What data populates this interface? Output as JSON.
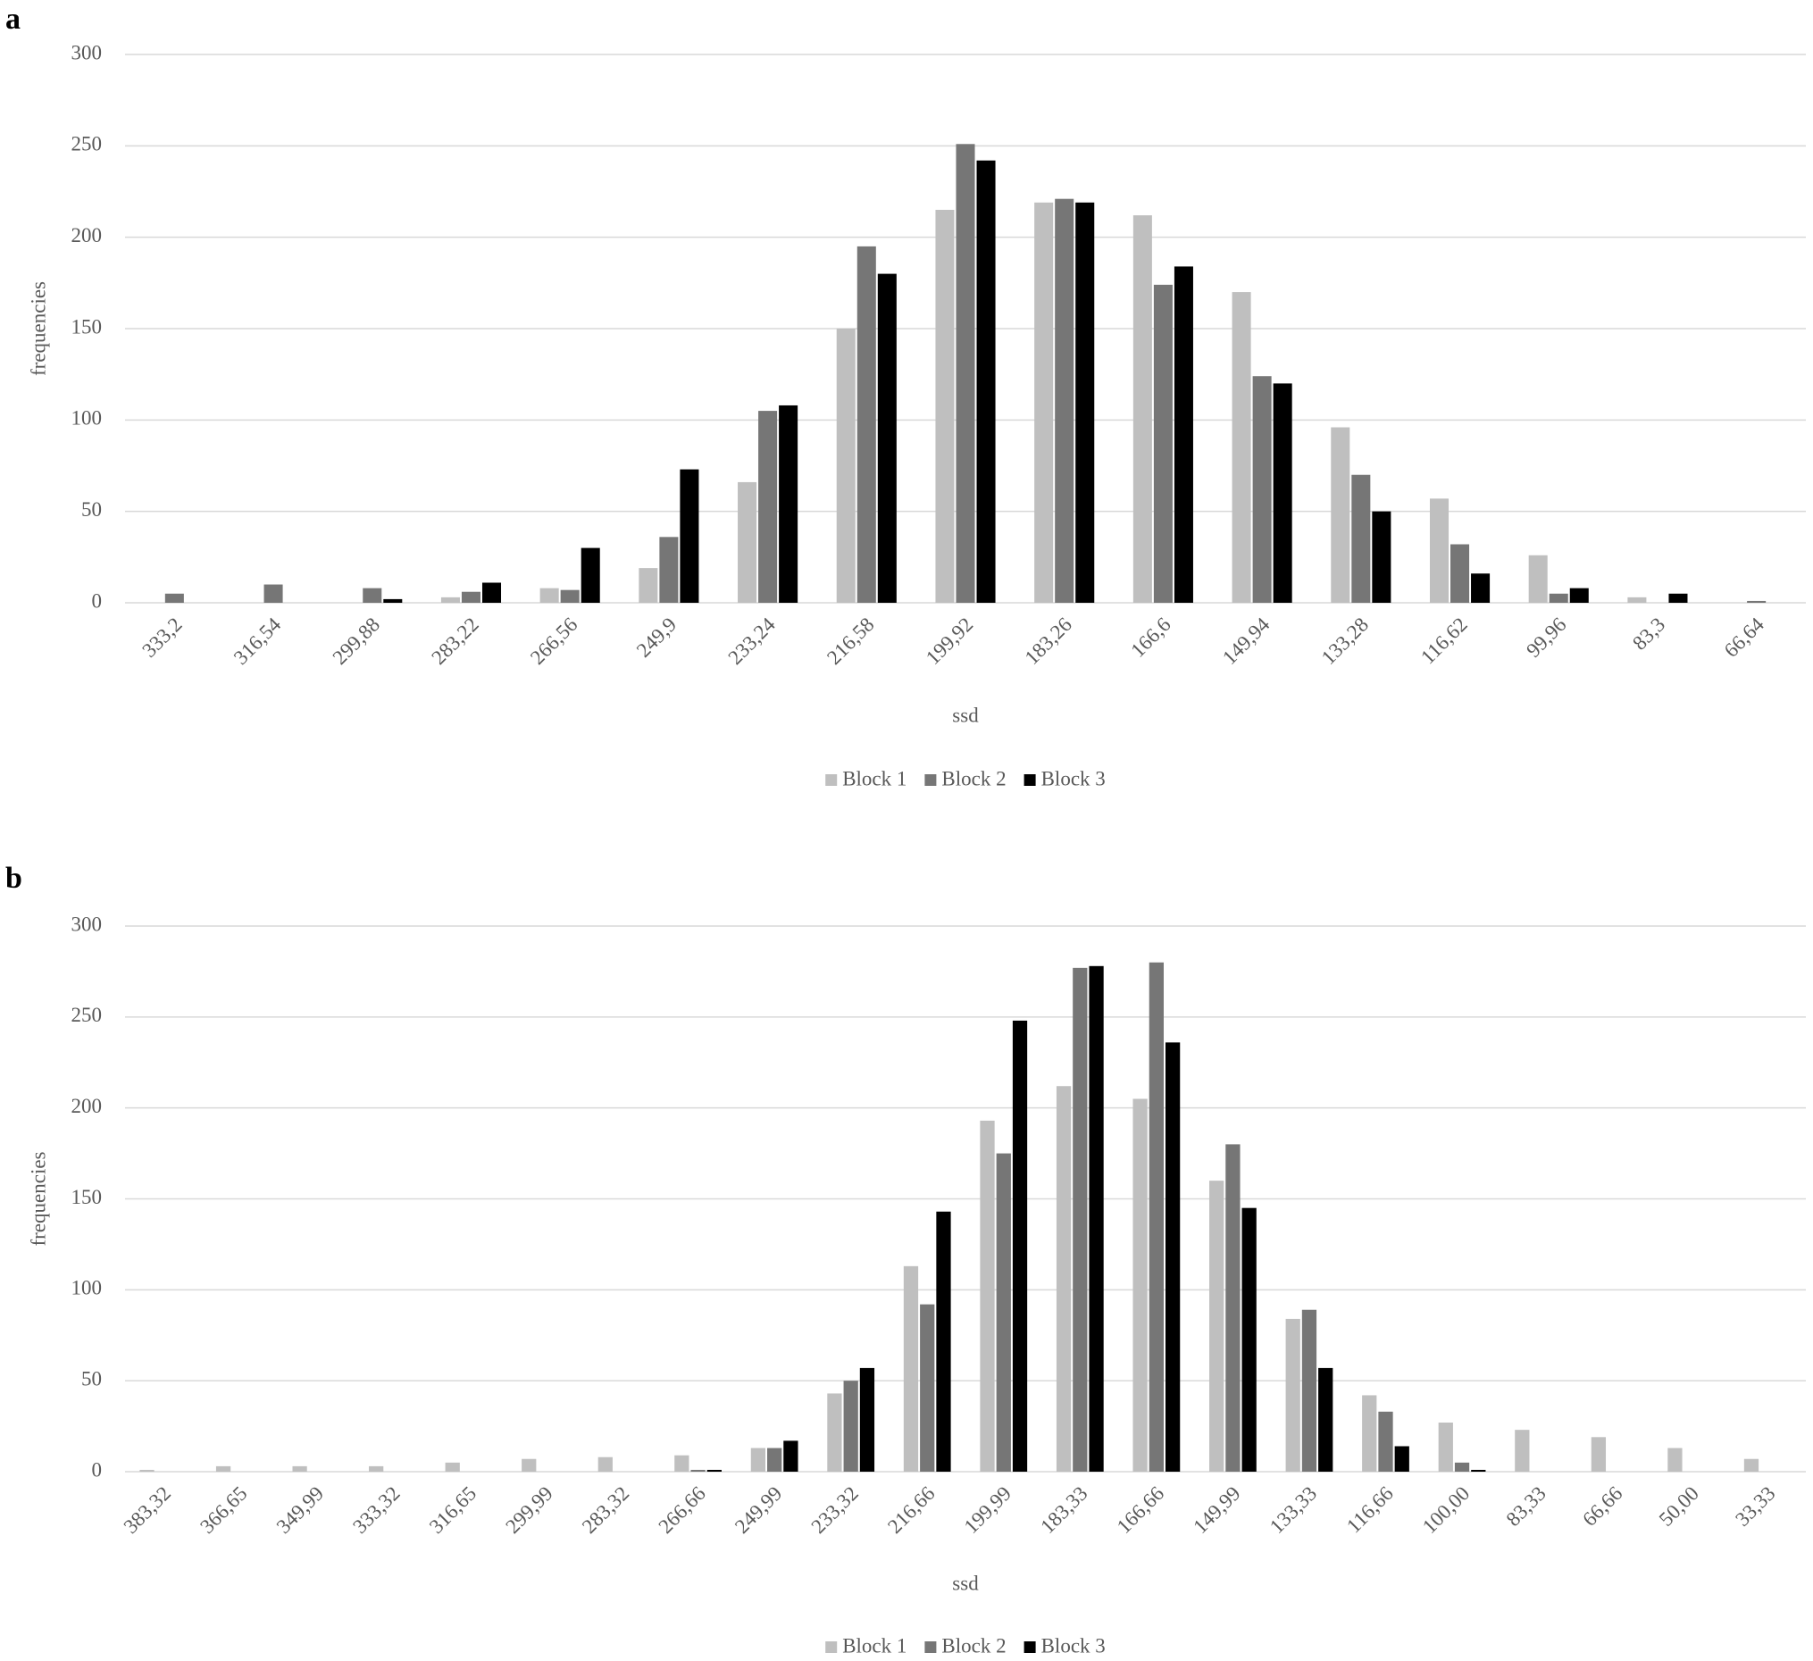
{
  "chart_data": [
    {
      "type": "bar",
      "panel_label": "a",
      "x_label": "ssd",
      "y_label": "frequencies",
      "categories": [
        "333,2",
        "316,54",
        "299,88",
        "283,22",
        "266,56",
        "249,9",
        "233,24",
        "216,58",
        "199,92",
        "183,26",
        "166,6",
        "149,94",
        "133,28",
        "116,62",
        "99,96",
        "83,3",
        "66,64"
      ],
      "series": [
        {
          "name": "Block 1",
          "color": "#bfbfbf",
          "values": [
            0,
            0,
            0,
            3,
            8,
            19,
            66,
            150,
            215,
            219,
            212,
            170,
            96,
            57,
            26,
            3,
            0
          ]
        },
        {
          "name": "Block 2",
          "color": "#767676",
          "values": [
            5,
            10,
            8,
            6,
            7,
            36,
            105,
            195,
            251,
            221,
            174,
            124,
            70,
            32,
            5,
            0,
            1
          ]
        },
        {
          "name": "Block 3",
          "color": "#000000",
          "values": [
            0,
            0,
            2,
            11,
            30,
            73,
            108,
            180,
            242,
            219,
            184,
            120,
            50,
            16,
            8,
            5,
            0
          ]
        }
      ],
      "ylim": [
        0,
        300
      ],
      "yticks": [
        0,
        50,
        100,
        150,
        200,
        250,
        300
      ],
      "grid": true,
      "legend": "bottom"
    },
    {
      "type": "bar",
      "panel_label": "b",
      "x_label": "ssd",
      "y_label": "frequencies",
      "categories": [
        "383,32",
        "366,65",
        "349,99",
        "333,32",
        "316,65",
        "299,99",
        "283,32",
        "266,66",
        "249,99",
        "233,32",
        "216,66",
        "199,99",
        "183,33",
        "166,66",
        "149,99",
        "133,33",
        "116,66",
        "100,00",
        "83,33",
        "66,66",
        "50,00",
        "33,33"
      ],
      "series": [
        {
          "name": "Block 1",
          "color": "#bfbfbf",
          "values": [
            1,
            3,
            3,
            3,
            5,
            7,
            8,
            9,
            13,
            43,
            113,
            193,
            212,
            205,
            160,
            84,
            42,
            27,
            23,
            19,
            13,
            7
          ]
        },
        {
          "name": "Block 2",
          "color": "#767676",
          "values": [
            0,
            0,
            0,
            0,
            0,
            0,
            0,
            1,
            13,
            50,
            92,
            175,
            277,
            280,
            180,
            89,
            33,
            5,
            0,
            0,
            0,
            0
          ]
        },
        {
          "name": "Block 3",
          "color": "#000000",
          "values": [
            0,
            0,
            0,
            0,
            0,
            0,
            0,
            1,
            17,
            57,
            143,
            248,
            278,
            236,
            145,
            57,
            14,
            1,
            0,
            0,
            0,
            0
          ]
        }
      ],
      "ylim": [
        0,
        300
      ],
      "yticks": [
        0,
        50,
        100,
        150,
        200,
        250,
        300
      ],
      "grid": true,
      "legend": "bottom"
    }
  ]
}
